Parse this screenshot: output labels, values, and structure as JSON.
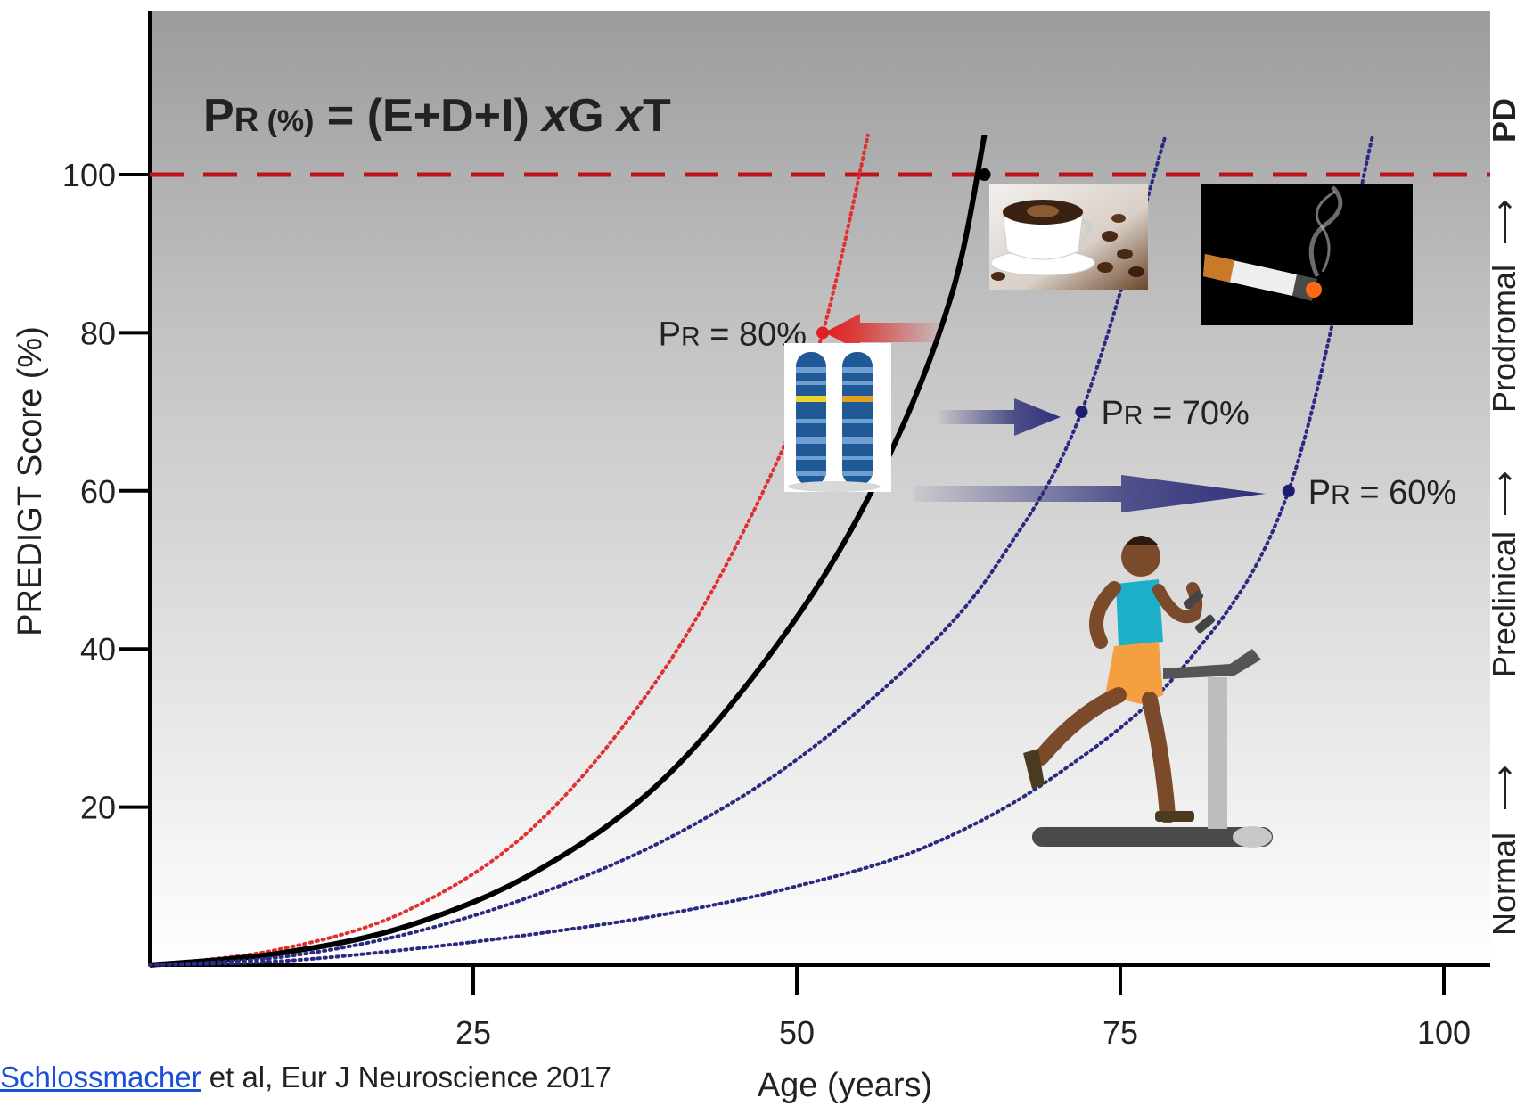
{
  "chart_data": {
    "type": "line",
    "title": "",
    "formula": {
      "prefix": "P",
      "small": "R",
      "unit": " (%)",
      "expr": " = (E+D+I) ",
      "x1": "x",
      "g": "G ",
      "x2": "x",
      "t": "T"
    },
    "xlabel": "Age (years)",
    "ylabel": "PREDIGT Score (%)",
    "xlim": [
      0,
      100
    ],
    "ylim": [
      0,
      100
    ],
    "x_ticks": [
      25,
      50,
      75,
      100
    ],
    "y_ticks": [
      20,
      40,
      60,
      80,
      100
    ],
    "threshold": {
      "y": 100,
      "color": "#c0141a"
    },
    "series": [
      {
        "style": "dotted",
        "color": "#e03030",
        "x": [
          0,
          10,
          20,
          30,
          40,
          48,
          52,
          55.5
        ],
        "y": [
          0,
          2,
          7,
          18,
          38,
          62,
          80,
          105
        ]
      },
      {
        "style": "solid",
        "color": "#000000",
        "x": [
          0,
          10,
          20,
          30,
          40,
          50,
          57,
          62,
          64.5
        ],
        "y": [
          0,
          1.5,
          5,
          12,
          24,
          44,
          64,
          85,
          105
        ]
      },
      {
        "style": "dotted",
        "color": "#2a2a80",
        "x": [
          0,
          10,
          20,
          30,
          40,
          50,
          60,
          66,
          72,
          78.5
        ],
        "y": [
          0,
          1,
          4,
          9,
          16,
          26,
          40,
          52,
          70,
          105
        ]
      },
      {
        "style": "dotted",
        "color": "#2a2a80",
        "x": [
          0,
          10,
          20,
          30,
          40,
          50,
          60,
          70,
          80,
          88,
          94.5
        ],
        "y": [
          0,
          0.5,
          2,
          4,
          6.5,
          10,
          15,
          24,
          38,
          60,
          105
        ]
      }
    ],
    "markers": [
      {
        "x": 64.5,
        "y": 100,
        "color": "#000000"
      },
      {
        "x": 52,
        "y": 80,
        "color": "#e02020",
        "label": {
          "prefix": "P",
          "small": "R",
          "rest": " = 80%"
        }
      },
      {
        "x": 72,
        "y": 70,
        "color": "#1e1e70",
        "label": {
          "prefix": "P",
          "small": "R",
          "rest": " = 70%"
        }
      },
      {
        "x": 88,
        "y": 60,
        "color": "#1e1e70",
        "label": {
          "prefix": "P",
          "small": "R",
          "rest": " = 60%"
        }
      }
    ],
    "stages": [
      "Normal",
      "Preclinical",
      "Prodromal",
      "PD"
    ],
    "colors": {
      "arrow_red": "#e02020",
      "arrow_blue": "#30307a",
      "background_top": "#9c9c9c",
      "background_bottom": "#ffffff"
    }
  },
  "illustrations": {
    "chromosome": "chromosome-icon",
    "coffee": "coffee-cup-icon",
    "cigarette": "cigarette-icon",
    "runner": "treadmill-runner-icon"
  },
  "citation": {
    "author": "Schlossmacher",
    "rest": " et al,  Eur J Neuroscience 2017"
  }
}
